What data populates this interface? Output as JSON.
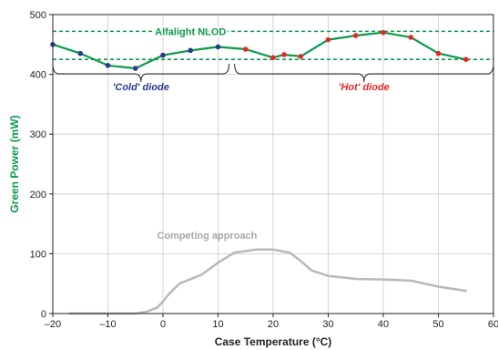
{
  "chart_data": {
    "type": "line",
    "xlabel": "Case Temperature (°C)",
    "ylabel": "Green Power (mW)",
    "xlim": [
      -20,
      60
    ],
    "ylim": [
      0,
      500
    ],
    "x_ticks": [
      -20,
      -10,
      0,
      10,
      20,
      30,
      40,
      50,
      60
    ],
    "y_ticks": [
      0,
      100,
      200,
      300,
      400,
      500
    ],
    "x_tick_labels": [
      "–20",
      "–10",
      "0",
      "10",
      "20",
      "30",
      "40",
      "50",
      "60"
    ],
    "y_tick_labels": [
      "0",
      "100",
      "200",
      "300",
      "400",
      "500"
    ],
    "grid": true,
    "series": [
      {
        "name": "Alfalight NLOD",
        "color": "#0a9a4c",
        "x": [
          -20,
          -15,
          -10,
          -5,
          0,
          5,
          10,
          15,
          20,
          22,
          25,
          30,
          35,
          40,
          45,
          50,
          55
        ],
        "y": [
          450,
          435,
          415,
          410,
          432,
          440,
          446,
          442,
          428,
          433,
          430,
          458,
          465,
          470,
          462,
          435,
          425
        ],
        "marker_colors": [
          "#2b3990",
          "#2b3990",
          "#2b3990",
          "#2b3990",
          "#2b3990",
          "#2b3990",
          "#2b3990",
          "#e8262a",
          "#e8262a",
          "#e8262a",
          "#e8262a",
          "#e8262a",
          "#e8262a",
          "#e8262a",
          "#e8262a",
          "#e8262a",
          "#e8262a"
        ]
      },
      {
        "name": "Competing approach",
        "color": "#b8b8be",
        "x": [
          -17,
          -5,
          -3,
          -1,
          0,
          1,
          3,
          7,
          10,
          13,
          17,
          20,
          23,
          25,
          27,
          30,
          35,
          40,
          45,
          50,
          55
        ],
        "y": [
          0,
          0,
          3,
          10,
          20,
          32,
          50,
          65,
          85,
          102,
          107,
          107,
          102,
          88,
          72,
          63,
          58,
          57,
          55,
          45,
          38
        ]
      }
    ],
    "band": {
      "y_low": 425,
      "y_high": 472,
      "color": "#0a9a4c"
    },
    "annotations": {
      "nlod_label": "Alfalight NLOD",
      "competing_label": "Competing approach",
      "cold": {
        "label": "'Cold' diode",
        "x_from": -20,
        "x_to": 12,
        "color": "#2b3990"
      },
      "hot": {
        "label": "'Hot' diode",
        "x_from": 13,
        "x_to": 60,
        "color": "#e8262a"
      }
    }
  }
}
